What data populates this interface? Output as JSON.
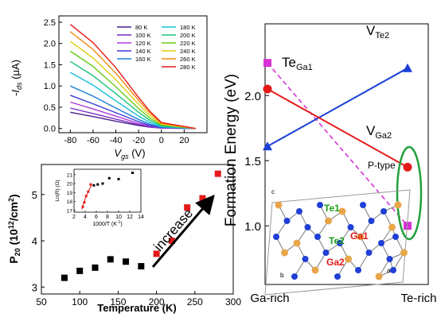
{
  "chart_data": [
    {
      "type": "line",
      "id": "transfer",
      "xlabel": "V",
      "xlabel_sub": "gs",
      "xlabel_unit": " (V)",
      "ylabel_prefix": "-I",
      "ylabel_sub": "ds",
      "ylabel_unit": " (μA)",
      "xlim": [
        -90,
        40
      ],
      "ylim": [
        -0.1,
        2.65
      ],
      "xticks": [
        -80,
        -60,
        -40,
        -20,
        0,
        20
      ],
      "yticks": [
        0.0,
        0.5,
        1.0,
        1.5,
        2.0,
        2.5
      ],
      "legend_position": "top-right",
      "series": [
        {
          "name": "80 K",
          "color": "#4b1e8c",
          "x": [
            -80,
            -60,
            -40,
            -20,
            -10,
            0,
            30
          ],
          "y": [
            0.38,
            0.28,
            0.17,
            0.07,
            0.03,
            0.01,
            0.0
          ]
        },
        {
          "name": "100 K",
          "color": "#7a2fc0",
          "x": [
            -80,
            -60,
            -40,
            -20,
            -10,
            0,
            30
          ],
          "y": [
            0.48,
            0.35,
            0.22,
            0.09,
            0.04,
            0.01,
            0.0
          ]
        },
        {
          "name": "120 K",
          "color": "#b13ad6",
          "x": [
            -80,
            -60,
            -40,
            -20,
            -10,
            0,
            30
          ],
          "y": [
            0.62,
            0.46,
            0.29,
            0.12,
            0.05,
            0.01,
            0.0
          ]
        },
        {
          "name": "140 K",
          "color": "#3a3ad8",
          "x": [
            -80,
            -60,
            -40,
            -20,
            -10,
            0,
            30
          ],
          "y": [
            0.78,
            0.58,
            0.37,
            0.16,
            0.07,
            0.02,
            0.0
          ]
        },
        {
          "name": "160 K",
          "color": "#1d7fd8",
          "x": [
            -80,
            -60,
            -40,
            -20,
            -10,
            0,
            30
          ],
          "y": [
            1.0,
            0.76,
            0.48,
            0.21,
            0.1,
            0.03,
            0.0
          ]
        },
        {
          "name": "180 K",
          "color": "#16c0d8",
          "x": [
            -80,
            -60,
            -40,
            -20,
            -10,
            0,
            30
          ],
          "y": [
            1.32,
            1.02,
            0.65,
            0.29,
            0.14,
            0.04,
            0.0
          ]
        },
        {
          "name": "200 K",
          "color": "#18c37a",
          "x": [
            -80,
            -60,
            -40,
            -20,
            -10,
            0,
            30
          ],
          "y": [
            1.58,
            1.24,
            0.82,
            0.38,
            0.19,
            0.06,
            0.0
          ]
        },
        {
          "name": "220 K",
          "color": "#6acb16",
          "x": [
            -80,
            -60,
            -40,
            -20,
            -10,
            0,
            30
          ],
          "y": [
            1.82,
            1.46,
            0.98,
            0.47,
            0.24,
            0.08,
            0.0
          ]
        },
        {
          "name": "240 K",
          "color": "#e0cc10",
          "x": [
            -80,
            -60,
            -40,
            -20,
            -10,
            0,
            30
          ],
          "y": [
            2.05,
            1.66,
            1.15,
            0.57,
            0.3,
            0.1,
            0.0
          ]
        },
        {
          "name": "260 K",
          "color": "#f08a12",
          "x": [
            -80,
            -60,
            -40,
            -20,
            -10,
            0,
            30
          ],
          "y": [
            2.28,
            1.86,
            1.3,
            0.66,
            0.36,
            0.12,
            0.0
          ]
        },
        {
          "name": "280 K",
          "color": "#e41a1a",
          "x": [
            -80,
            -60,
            -40,
            -20,
            -10,
            0,
            30
          ],
          "y": [
            2.45,
            2.02,
            1.43,
            0.73,
            0.4,
            0.14,
            0.0
          ]
        }
      ]
    },
    {
      "type": "scatter",
      "id": "density",
      "xlabel": "Temperature (K)",
      "ylabel_main": "P",
      "ylabel_sub": "20",
      "ylabel_rest": " (10",
      "ylabel_sup": "12",
      "ylabel_end": "/cm",
      "ylabel_sup2": "2",
      "ylabel_close": ")",
      "xlim": [
        50,
        300
      ],
      "ylim": [
        2.85,
        5.65
      ],
      "xticks": [
        50,
        100,
        150,
        200,
        250,
        300
      ],
      "yticks": [
        3,
        4,
        5
      ],
      "annotation": "increase",
      "series": [
        {
          "color": "#000000",
          "x": [
            80,
            100,
            120,
            140,
            160,
            180
          ],
          "y": [
            3.2,
            3.35,
            3.42,
            3.6,
            3.55,
            3.45
          ]
        },
        {
          "color": "#e41a1a",
          "x": [
            200,
            220,
            240,
            260,
            280
          ],
          "y": [
            3.72,
            4.0,
            4.72,
            4.92,
            5.45
          ]
        }
      ]
    },
    {
      "type": "scatter",
      "id": "arrhenius-inset",
      "xlabel": "1000/T (K",
      "xlabel_sup": "-1",
      "xlabel_end": ")",
      "ylabel": "Ln(R) (Ω)",
      "xlim": [
        2,
        14
      ],
      "ylim": [
        16.8,
        21.6
      ],
      "xticks": [
        2,
        4,
        6,
        8,
        10,
        12,
        14
      ],
      "yticks": [
        17,
        18,
        19,
        20,
        21
      ],
      "series": [
        {
          "color": "#000000",
          "x": [
            5.56,
            6.25,
            7.14,
            8.33,
            10.0,
            12.5
          ],
          "y": [
            19.8,
            19.9,
            20.0,
            20.6,
            20.5,
            21.2
          ]
        },
        {
          "color": "#e41a1a",
          "x": [
            3.57,
            3.85,
            4.17,
            4.55,
            5.0
          ],
          "y": [
            17.4,
            17.9,
            18.6,
            19.1,
            19.9
          ]
        }
      ],
      "fit": {
        "color": "#e41a1a",
        "x": [
          3.4,
          3.7,
          4.0,
          4.4,
          4.8,
          5.1
        ],
        "y": [
          17.1,
          17.7,
          18.3,
          18.9,
          19.4,
          19.8
        ]
      }
    },
    {
      "type": "line",
      "id": "formation-energy",
      "ylabel": "Formation Energy (eV)",
      "xticks_labels": [
        "Ga-rich",
        "Te-rich"
      ],
      "ylim": [
        0.55,
        2.55
      ],
      "yticks": [
        1.0,
        1.5,
        2.0
      ],
      "series": [
        {
          "name": "Te",
          "name_sub": "Ga1",
          "color": "#d632d6",
          "dashed": true,
          "marker": "square",
          "y": [
            2.25,
            1.0
          ]
        },
        {
          "name": "V",
          "name_sub": "Te2",
          "color": "#1a3fd6",
          "dashed": false,
          "marker": "triangle",
          "y": [
            1.61,
            2.21
          ]
        },
        {
          "name": "V",
          "name_sub": "Ga2",
          "color": "#e41a1a",
          "dashed": false,
          "marker": "circle",
          "y": [
            2.05,
            1.45
          ]
        }
      ],
      "annotations": {
        "ptype": "P-type"
      },
      "crystal_inset": {
        "labels": [
          "Te1",
          "Te2",
          "Ga1",
          "Ga2"
        ],
        "label_colors": [
          "#1aa01a",
          "#1aa01a",
          "#e41a1a",
          "#e41a1a"
        ],
        "axis_labels": [
          "c",
          "b",
          "a"
        ],
        "atom_colors": {
          "ga": "#e8a64a",
          "te": "#1f3fd6"
        }
      }
    }
  ]
}
